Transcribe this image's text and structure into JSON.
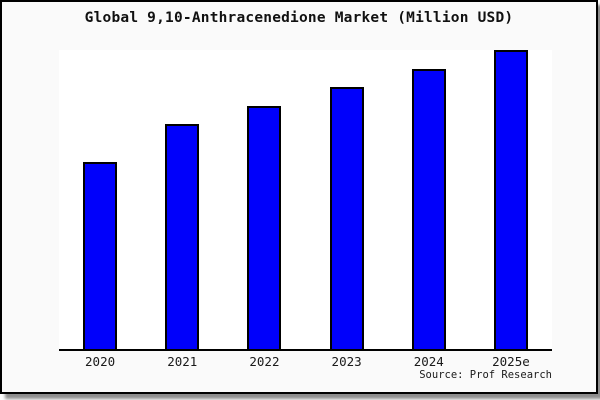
{
  "title": "Global 9,10-Anthracenedione Market (Million USD)",
  "source_note": "Source: Prof Research",
  "colors": {
    "figure_background": "#FAFAFA",
    "plot_background": "#FFFFFF",
    "bar_fill": "#0000FB",
    "bar_border": "#000000",
    "axis_line": "#000000",
    "figure_border": "#000000",
    "text": "#1a1a1a"
  },
  "chart_data": {
    "type": "bar",
    "title": "Global 9,10-Anthracenedione Market (Million USD)",
    "categories": [
      "2020",
      "2021",
      "2022",
      "2023",
      "2024",
      "2025e"
    ],
    "values": [
      62.6,
      75.1,
      81.4,
      87.6,
      93.5,
      100
    ],
    "values_note": "y-axis is unlabeled; values are bar heights as percent of the tallest (2025e) bar measured from the chart",
    "series_name": "Market size (Million USD)",
    "xlabel": "",
    "ylabel": "",
    "y_axis_labeled": false,
    "gridlines": false,
    "legend_position": "none",
    "annotation": "Source: Prof Research"
  }
}
